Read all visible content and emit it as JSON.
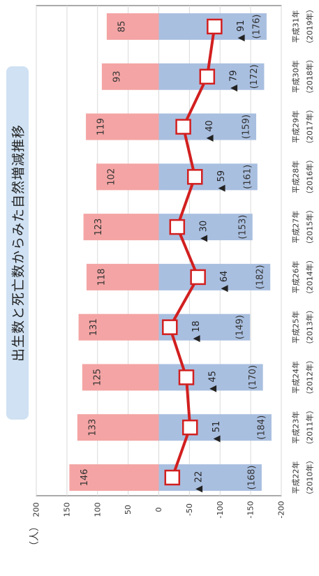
{
  "title": "出生数と死亡数からみた自然増減推移",
  "unit": "（人）",
  "colors": {
    "births": "#f4a4a4",
    "deaths": "#a9bfe0",
    "line": "#d21f1f",
    "marker_fill": "#ffffff",
    "text": "#333333",
    "grid": "#d9d9d9"
  },
  "chart_data": {
    "type": "bar",
    "ylim": [
      -200,
      200
    ],
    "y_ticks": [
      "200",
      "150",
      "100",
      "50",
      "0",
      "-50",
      "-100",
      "-150",
      "-200"
    ],
    "tick_values": [
      200,
      150,
      100,
      50,
      0,
      -50,
      -100,
      -150,
      -200
    ],
    "categories": [
      {
        "era": "平成22年",
        "year": "（2010年）"
      },
      {
        "era": "平成23年",
        "year": "（2011年）"
      },
      {
        "era": "平成24年",
        "year": "（2012年）"
      },
      {
        "era": "平成25年",
        "year": "（2013年）"
      },
      {
        "era": "平成26年",
        "year": "（2014年）"
      },
      {
        "era": "平成27年",
        "year": "（2015年）"
      },
      {
        "era": "平成28年",
        "year": "（2016年）"
      },
      {
        "era": "平成29年",
        "year": "（2017年）"
      },
      {
        "era": "平成30年",
        "year": "（2018年）"
      },
      {
        "era": "平成31年",
        "year": "（2019年）"
      }
    ],
    "births": [
      146,
      133,
      125,
      131,
      118,
      123,
      102,
      119,
      93,
      85
    ],
    "deaths": [
      168,
      184,
      170,
      149,
      182,
      153,
      161,
      159,
      172,
      176
    ],
    "natural_change": [
      -22,
      -51,
      -45,
      -18,
      -64,
      -30,
      -59,
      -40,
      -79,
      -91
    ],
    "birth_labels": [
      "146",
      "133",
      "125",
      "131",
      "118",
      "123",
      "102",
      "119",
      "93",
      "85"
    ],
    "death_labels": [
      "(168)",
      "(184)",
      "(170)",
      "(149)",
      "(182)",
      "(153)",
      "(161)",
      "(159)",
      "(172)",
      "(176)"
    ],
    "change_labels": [
      "▲ 22",
      "▲ 51",
      "▲ 45",
      "▲ 18",
      "▲ 64",
      "▲ 30",
      "▲ 59",
      "▲ 40",
      "▲ 79",
      "▲ 91"
    ]
  }
}
